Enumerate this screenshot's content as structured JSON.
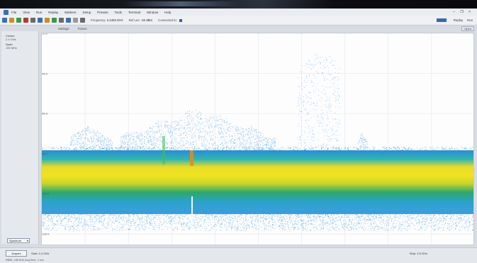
{
  "menu": {
    "items": [
      "File",
      "View",
      "Run",
      "Replay",
      "Markers",
      "Setup",
      "Presets",
      "Tools",
      "Terminal",
      "Window",
      "Help"
    ],
    "window_controls": "– ❐ ×"
  },
  "toolbar": {
    "fields": [
      {
        "label": "Frequency:",
        "value": "2.4453 GHz"
      },
      {
        "label": "Ref Lev:",
        "value": "-20 dBm"
      },
      {
        "label": "Connected to:",
        "value": ""
      }
    ],
    "replay_label": "Replay",
    "run_label": "Run",
    "colors": [
      "#3a6db4",
      "#d28b23",
      "#3a9a4a",
      "#b33939",
      "#6a6a6a",
      "#3a6db4",
      "#d28b23",
      "#3a9a4a",
      "#6a6a6a",
      "#3a6db4",
      "#9a9a9a",
      "#6a6a6a"
    ]
  },
  "subbar": {
    "settings_label": "Settings",
    "traces_label": "Traces",
    "open_label": "Open"
  },
  "left_panel": {
    "center_label": "Center:",
    "center_value": "2.4 GHz",
    "span_label": "Span:",
    "span_value": "100 MHz",
    "view_select": "Spectrum"
  },
  "plot": {
    "y_labels": [
      "-20.0",
      "-40.0",
      "-60.0",
      "-80.0",
      "-100.0",
      "-120.0"
    ],
    "y_range": [
      -126,
      -20
    ]
  },
  "bottom": {
    "acquire_label": "Acquire",
    "start_text": "Start: 2.4 GHz",
    "stop_text": "Stop: 2.5 GHz",
    "status_text": "RBW: 100 kHz   Acq time: 1 ms"
  }
}
